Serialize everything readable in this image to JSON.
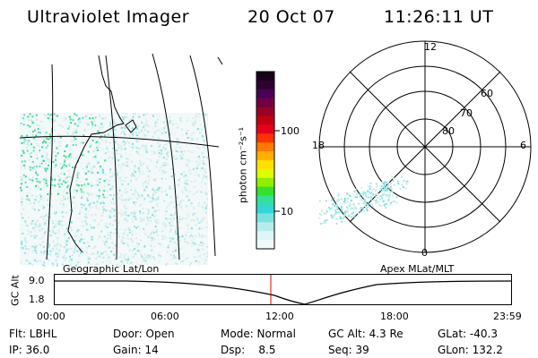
{
  "header": {
    "instrument": "Ultraviolet Imager",
    "date": "20 Oct 07",
    "time": "11:26:11 UT"
  },
  "colorbar": {
    "unit_label": "photon cm⁻²s⁻¹",
    "ticks": [
      "100",
      "10"
    ],
    "colors": [
      "#1a001a",
      "#2e0033",
      "#4a0055",
      "#70003f",
      "#990022",
      "#c20010",
      "#e6001a",
      "#ff3300",
      "#ff7a00",
      "#ffb000",
      "#ffe000",
      "#d9ff00",
      "#8cf000",
      "#33e033",
      "#33e0a0",
      "#33d6d6",
      "#7de0e0",
      "#b8ecec",
      "#e0f5f5",
      "#f0fafa"
    ]
  },
  "map_labels": {
    "left": "Geographic Lat/Lon",
    "right": "Apex MLat/MLT"
  },
  "polar": {
    "mlt_labels": [
      "12",
      "18",
      "6",
      "0"
    ],
    "lat_labels": [
      "60",
      "70",
      "80"
    ]
  },
  "gc_alt": {
    "axis_label": "GC Alt",
    "y_ticks": [
      "9.0",
      "1.8"
    ],
    "x_ticks": [
      "00:00",
      "06:00",
      "12:00",
      "18:00",
      "23:59"
    ]
  },
  "info": {
    "flt": "Flt: LBHL",
    "ip": "IP: 36.0",
    "door": "Door: Open",
    "gain": "Gain: 14",
    "mode": "Mode: Normal",
    "dsp": "Dsp:    8.5",
    "gcalt": "GC Alt: 4.3 Re",
    "seq": "Seq: 39",
    "glat": "GLat: -40.3",
    "glon": "GLon: 132.2"
  }
}
